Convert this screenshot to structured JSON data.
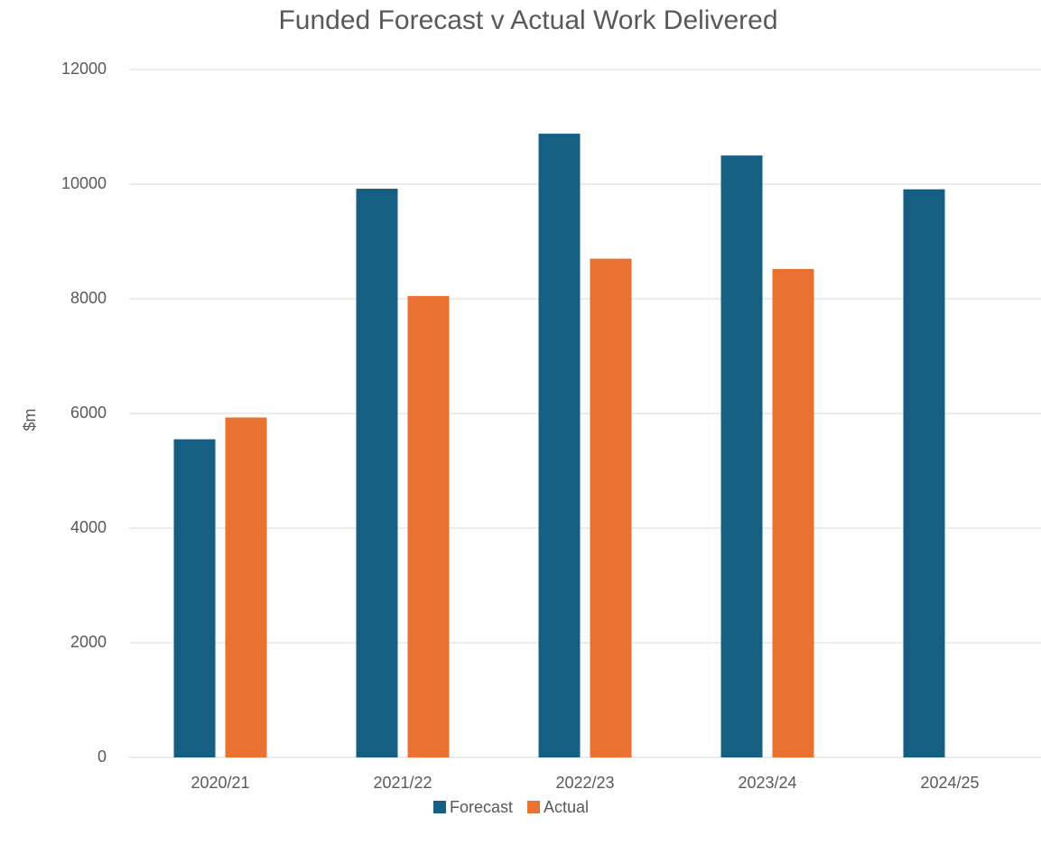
{
  "chart_data": {
    "type": "bar",
    "title": "Funded Forecast v Actual Work Delivered",
    "y_label": "$m",
    "categories": [
      "2020/21",
      "2021/22",
      "2022/23",
      "2023/24",
      "2024/25"
    ],
    "series": [
      {
        "name": "Forecast",
        "color": "#156082",
        "values": [
          5550,
          9920,
          10880,
          10500,
          9910
        ]
      },
      {
        "name": "Actual",
        "color": "#e97132",
        "values": [
          5930,
          8050,
          8700,
          8520,
          null
        ]
      }
    ],
    "ylim": [
      0,
      12000
    ],
    "yticks": [
      0,
      2000,
      4000,
      6000,
      8000,
      10000,
      12000
    ],
    "grid": true,
    "legend": "bottom"
  }
}
